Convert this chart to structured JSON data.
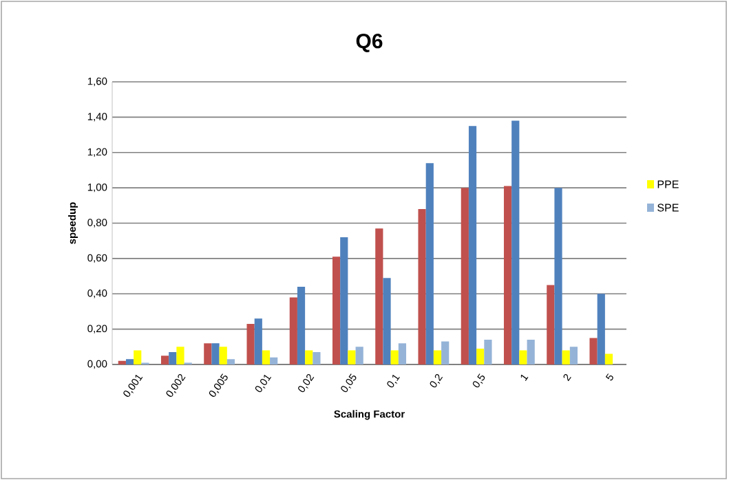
{
  "chart_data": {
    "type": "bar",
    "title": "Q6",
    "xlabel": "Scaling Factor",
    "ylabel": "speedup",
    "categories": [
      "0,001",
      "0,002",
      "0,005",
      "0,01",
      "0,02",
      "0,05",
      "0,1",
      "0,2",
      "0,5",
      "1",
      "2",
      "5"
    ],
    "series": [
      {
        "color": "#c0504d",
        "values": [
          0.02,
          0.05,
          0.12,
          0.23,
          0.38,
          0.61,
          0.77,
          0.88,
          1.0,
          1.01,
          0.45,
          0.15
        ]
      },
      {
        "color": "#4f81bd",
        "values": [
          0.03,
          0.07,
          0.12,
          0.26,
          0.44,
          0.72,
          0.49,
          1.14,
          1.35,
          1.38,
          1.0,
          0.4
        ]
      },
      {
        "name": "PPE",
        "color": "#ffff00",
        "values": [
          0.08,
          0.1,
          0.1,
          0.08,
          0.08,
          0.08,
          0.08,
          0.08,
          0.09,
          0.08,
          0.08,
          0.06
        ]
      },
      {
        "name": "SPE",
        "color": "#95b3d7",
        "values": [
          0.01,
          0.01,
          0.03,
          0.04,
          0.07,
          0.1,
          0.12,
          0.13,
          0.14,
          0.14,
          0.1,
          null
        ]
      }
    ],
    "ylim": [
      0,
      1.6
    ],
    "yticks": [
      {
        "value": 0,
        "label": "0,00"
      },
      {
        "value": 0.2,
        "label": "0,20"
      },
      {
        "value": 0.4,
        "label": "0,40"
      },
      {
        "value": 0.6,
        "label": "0,60"
      },
      {
        "value": 0.8,
        "label": "0,80"
      },
      {
        "value": 1.0,
        "label": "1,00"
      },
      {
        "value": 1.2,
        "label": "1,20"
      },
      {
        "value": 1.4,
        "label": "1,40"
      },
      {
        "value": 1.6,
        "label": "1,60"
      }
    ],
    "grid": "y",
    "legend": "right"
  }
}
